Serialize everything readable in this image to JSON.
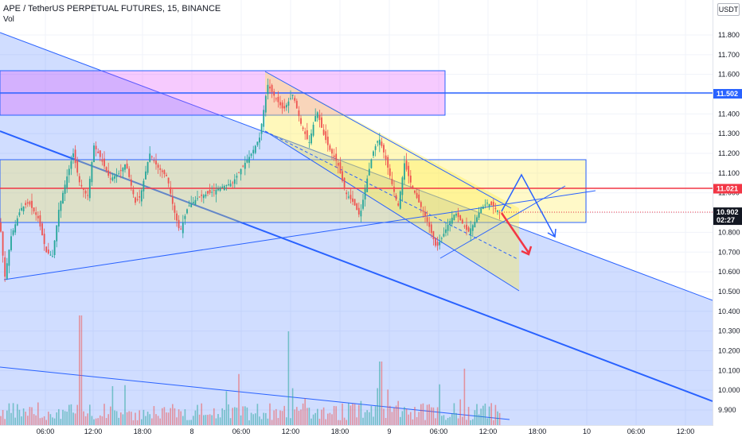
{
  "header": {
    "symbol_line": "APE / TetherUS PERPETUAL FUTURES, 15, BINANCE",
    "vol_label": "Vol",
    "currency": "USDT"
  },
  "chart_data": {
    "type": "candlestick",
    "price_axis": {
      "ticks": [
        "11.800",
        "11.700",
        "11.600",
        "11.500",
        "11.400",
        "11.300",
        "11.200",
        "11.100",
        "11.000",
        "10.900",
        "10.800",
        "10.700",
        "10.600",
        "10.500",
        "10.400",
        "10.300",
        "10.200",
        "10.100",
        "10.000",
        "9.900"
      ],
      "range": [
        9.88,
        11.88
      ]
    },
    "time_axis": {
      "ticks": [
        "06:00",
        "12:00",
        "18:00",
        "8",
        "06:00",
        "12:00",
        "18:00",
        "9",
        "06:00",
        "12:00",
        "18:00",
        "10",
        "06:00",
        "12:00"
      ]
    },
    "price_tags": [
      {
        "text": "11.502",
        "value": 11.502,
        "color": "#2962ff"
      },
      {
        "text": "11.021",
        "value": 11.021,
        "color": "#f23645"
      },
      {
        "text": "10.902",
        "sub": "02:27",
        "value": 10.902,
        "color": "#131722"
      }
    ],
    "colors": {
      "up": "#26a69a",
      "down": "#ef5350",
      "channel": "#2962ff",
      "resistance": "#f23645"
    },
    "series": [
      {
        "name": "price",
        "approx_path": [
          [
            0,
            10.85
          ],
          [
            6,
            10.57
          ],
          [
            14,
            10.78
          ],
          [
            26,
            10.92
          ],
          [
            36,
            10.95
          ],
          [
            48,
            10.87
          ],
          [
            58,
            10.7
          ],
          [
            66,
            10.68
          ],
          [
            74,
            10.92
          ],
          [
            84,
            11.08
          ],
          [
            92,
            11.2
          ],
          [
            100,
            11.05
          ],
          [
            110,
            10.98
          ],
          [
            118,
            11.24
          ],
          [
            126,
            11.18
          ],
          [
            138,
            11.07
          ],
          [
            150,
            11.1
          ],
          [
            158,
            11.15
          ],
          [
            170,
            10.95
          ],
          [
            176,
            10.98
          ],
          [
            188,
            11.2
          ],
          [
            198,
            11.13
          ],
          [
            210,
            11.08
          ],
          [
            218,
            10.92
          ],
          [
            226,
            10.8
          ],
          [
            236,
            10.93
          ],
          [
            250,
            10.98
          ],
          [
            264,
            11.0
          ],
          [
            278,
            11.03
          ],
          [
            292,
            11.05
          ],
          [
            304,
            11.13
          ],
          [
            316,
            11.2
          ],
          [
            326,
            11.28
          ],
          [
            336,
            11.55
          ],
          [
            346,
            11.48
          ],
          [
            356,
            11.42
          ],
          [
            368,
            11.5
          ],
          [
            378,
            11.35
          ],
          [
            388,
            11.25
          ],
          [
            398,
            11.42
          ],
          [
            406,
            11.3
          ],
          [
            414,
            11.22
          ],
          [
            424,
            11.15
          ],
          [
            434,
            11.0
          ],
          [
            444,
            10.95
          ],
          [
            452,
            10.88
          ],
          [
            460,
            11.05
          ],
          [
            468,
            11.2
          ],
          [
            476,
            11.28
          ],
          [
            484,
            11.18
          ],
          [
            492,
            11.05
          ],
          [
            500,
            10.93
          ],
          [
            508,
            11.15
          ],
          [
            516,
            11.05
          ],
          [
            524,
            10.97
          ],
          [
            532,
            10.9
          ],
          [
            540,
            10.82
          ],
          [
            548,
            10.72
          ],
          [
            556,
            10.78
          ],
          [
            564,
            10.85
          ],
          [
            572,
            10.9
          ],
          [
            580,
            10.85
          ],
          [
            588,
            10.8
          ],
          [
            596,
            10.85
          ],
          [
            604,
            10.92
          ],
          [
            612,
            10.95
          ],
          [
            620,
            10.93
          ],
          [
            628,
            10.9
          ]
        ]
      }
    ],
    "volume": {
      "approx_max_index": 362
    }
  }
}
